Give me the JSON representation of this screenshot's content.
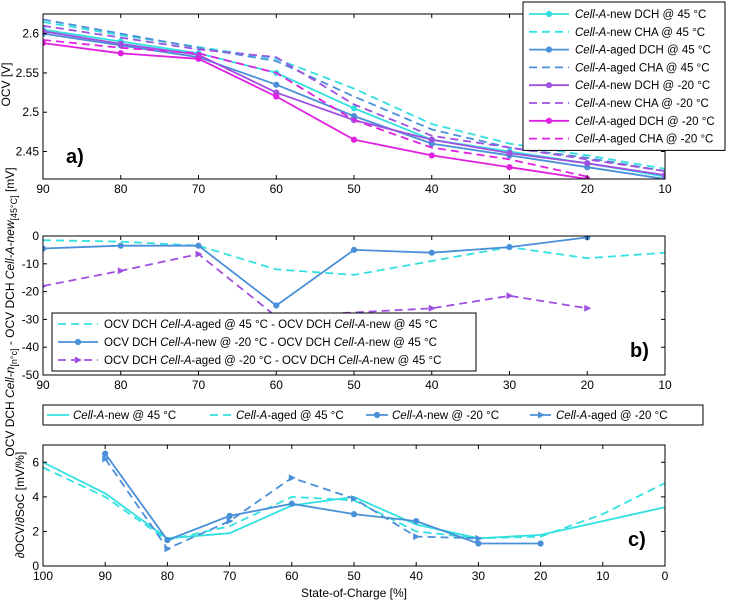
{
  "colors": {
    "cyan": "#33E0E0",
    "blue": "#4A90D9",
    "purple": "#A050E0",
    "magenta": "#E020E0",
    "axis": "#000000"
  },
  "chart_data": [
    {
      "id": "a",
      "type": "line",
      "panel_label": "a)",
      "ylabel": "OCV [V]",
      "xlim": [
        90,
        10
      ],
      "ylim": [
        2.415,
        2.625
      ],
      "x_ticks": [
        90,
        80,
        70,
        60,
        50,
        40,
        30,
        20,
        10
      ],
      "y_ticks": [
        2.45,
        2.5,
        2.55,
        2.6
      ],
      "legend_position": "top-right",
      "series": [
        {
          "name": "Cell-A-new DCH @ 45 °C",
          "name_italic": "Cell-A",
          "name_rest": "-new DCH @ 45 °C",
          "color": "#33E0E0",
          "dash": false,
          "marker": "circle",
          "x": [
            90,
            80,
            70,
            60,
            50,
            40,
            30,
            20,
            10
          ],
          "y": [
            2.605,
            2.59,
            2.575,
            2.55,
            2.505,
            2.465,
            2.45,
            2.435,
            2.418
          ]
        },
        {
          "name": "Cell-A-new CHA @ 45 °C",
          "name_italic": "Cell-A",
          "name_rest": "-new CHA @ 45 °C",
          "color": "#33E0E0",
          "dash": true,
          "marker": "none",
          "x": [
            90,
            80,
            70,
            60,
            50,
            40,
            30,
            20,
            10
          ],
          "y": [
            2.615,
            2.598,
            2.583,
            2.568,
            2.53,
            2.485,
            2.46,
            2.445,
            2.428
          ]
        },
        {
          "name": "Cell-A-aged DCH @ 45 °C",
          "name_italic": "Cell-A",
          "name_rest": "-aged DCH @ 45 °C",
          "color": "#4A90D9",
          "dash": false,
          "marker": "circle",
          "x": [
            90,
            80,
            70,
            60,
            50,
            40,
            30,
            20,
            10
          ],
          "y": [
            2.6,
            2.585,
            2.57,
            2.535,
            2.495,
            2.46,
            2.445,
            2.43,
            2.415
          ]
        },
        {
          "name": "Cell-A-aged CHA @ 45 °C",
          "name_italic": "Cell-A",
          "name_rest": "-aged CHA @ 45 °C",
          "color": "#4A90D9",
          "dash": true,
          "marker": "none",
          "x": [
            90,
            80,
            70,
            60,
            50,
            40,
            30,
            20,
            10
          ],
          "y": [
            2.618,
            2.6,
            2.582,
            2.565,
            2.52,
            2.478,
            2.455,
            2.442,
            2.425
          ]
        },
        {
          "name": "Cell-A-new DCH @ -20 °C",
          "name_italic": "Cell-A",
          "name_rest": "-new DCH @ -20 °C",
          "color": "#A050E0",
          "dash": false,
          "marker": "circle",
          "x": [
            90,
            80,
            70,
            60,
            50,
            40,
            30,
            20,
            10
          ],
          "y": [
            2.603,
            2.587,
            2.573,
            2.525,
            2.49,
            2.465,
            2.448,
            2.435,
            2.42
          ]
        },
        {
          "name": "Cell-A-new CHA @ -20 °C",
          "name_italic": "Cell-A",
          "name_rest": "-new CHA @ -20 °C",
          "color": "#A050E0",
          "dash": true,
          "marker": "none",
          "x": [
            90,
            80,
            70,
            60,
            50,
            40,
            30,
            20,
            10
          ],
          "y": [
            2.61,
            2.595,
            2.58,
            2.57,
            2.51,
            2.47,
            2.455,
            2.44,
            2.425
          ]
        },
        {
          "name": "Cell-A-aged DCH @ -20 °C",
          "name_italic": "Cell-A",
          "name_rest": "-aged DCH @ -20 °C",
          "color": "#E020E0",
          "dash": false,
          "marker": "circle",
          "x": [
            90,
            80,
            70,
            60,
            50,
            40,
            30,
            20
          ],
          "y": [
            2.588,
            2.575,
            2.568,
            2.52,
            2.465,
            2.445,
            2.43,
            2.415
          ]
        },
        {
          "name": "Cell-A-aged CHA @ -20 °C",
          "name_italic": "Cell-A",
          "name_rest": "-aged CHA @ -20 °C",
          "color": "#E020E0",
          "dash": true,
          "marker": "none",
          "x": [
            90,
            80,
            70,
            60,
            50,
            40,
            30,
            20
          ],
          "y": [
            2.592,
            2.582,
            2.575,
            2.55,
            2.49,
            2.455,
            2.44,
            2.418
          ]
        }
      ]
    },
    {
      "id": "b",
      "type": "line",
      "panel_label": "b)",
      "ylabel": "OCV DCH Cell-ni[n°c] - OCV DCH Cell-A-new[45°C] [mV]",
      "ylabel_parts": [
        "OCV DCH ",
        "Cell-n",
        "[n°c]",
        " - OCV DCH ",
        "Cell-A-new",
        "[45°C]",
        " [mV]"
      ],
      "xlim": [
        90,
        10
      ],
      "ylim": [
        -50,
        0
      ],
      "x_ticks": [
        90,
        80,
        70,
        60,
        50,
        40,
        30,
        20,
        10
      ],
      "y_ticks": [
        0,
        -10,
        -20,
        -30,
        -40,
        -50
      ],
      "legend_position": "bottom-left",
      "series": [
        {
          "name": "OCV DCH Cell-A-aged @ 45 °C - OCV DCH Cell-A-new @ 45 °C",
          "name_parts": [
            "OCV DCH ",
            "Cell-A",
            "-aged @ 45 °C - OCV DCH ",
            "Cell-A",
            "-new @ 45 °C"
          ],
          "color": "#33E0E0",
          "dash": true,
          "marker": "none",
          "x": [
            90,
            80,
            70,
            60,
            50,
            40,
            30,
            20,
            10
          ],
          "y": [
            -1.5,
            -2,
            -3.5,
            -12,
            -14,
            -9,
            -4,
            -8,
            -6
          ]
        },
        {
          "name": "OCV DCH Cell-A-new @ -20 °C - OCV DCH Cell-A-new @ 45 °C",
          "name_parts": [
            "OCV DCH ",
            "Cell-A",
            "-new @ -20 °C - OCV DCH ",
            "Cell-A",
            "-new @ 45 °C"
          ],
          "color": "#4A90D9",
          "dash": false,
          "marker": "circle",
          "x": [
            90,
            80,
            70,
            60,
            50,
            40,
            30,
            20
          ],
          "y": [
            -4.5,
            -3.5,
            -3.5,
            -25,
            -5,
            -6,
            -4,
            -0.5
          ]
        },
        {
          "name": "OCV DCH Cell-A-aged @ -20 °C - OCV DCH Cell-A-new @ 45 °C",
          "name_parts": [
            "OCV DCH ",
            "Cell-A",
            "-aged @ -20 °C - OCV DCH ",
            "Cell-A",
            "-new @ 45 °C"
          ],
          "color": "#A050E0",
          "dash": true,
          "marker": "triangle",
          "x": [
            90,
            80,
            70,
            60,
            40,
            30,
            20
          ],
          "y": [
            -18,
            -12.5,
            -6.5,
            -29,
            -26,
            -21.5,
            -26
          ]
        }
      ]
    },
    {
      "id": "c",
      "type": "line",
      "panel_label": "c)",
      "ylabel": "∂OCV/∂SoC [mV/%]",
      "xlabel": "State-of-Charge [%]",
      "xlim": [
        100,
        0
      ],
      "ylim": [
        0,
        7
      ],
      "x_ticks": [
        100,
        90,
        80,
        70,
        60,
        50,
        40,
        30,
        20,
        10,
        0
      ],
      "y_ticks": [
        0,
        2,
        4,
        6
      ],
      "legend_position": "top",
      "series": [
        {
          "name": "Cell-A-new @ 45 °C",
          "name_italic": "Cell-A",
          "name_rest": "-new @ 45 °C",
          "color": "#33E0E0",
          "dash": false,
          "marker": "none",
          "x": [
            100,
            90,
            80,
            70,
            60,
            50,
            40,
            30,
            20,
            10,
            0
          ],
          "y": [
            6.0,
            4.2,
            1.6,
            1.9,
            3.5,
            4.0,
            2.4,
            1.6,
            1.8,
            2.6,
            3.4
          ]
        },
        {
          "name": "Cell-A-aged  @ 45 °C",
          "name_italic": "Cell-A",
          "name_rest": "-aged  @ 45 °C",
          "color": "#33E0E0",
          "dash": true,
          "marker": "none",
          "x": [
            100,
            90,
            80,
            70,
            60,
            50,
            40,
            30,
            20,
            10,
            0
          ],
          "y": [
            5.7,
            4.0,
            1.5,
            2.3,
            4.0,
            3.8,
            2.0,
            1.6,
            1.7,
            3.0,
            4.8
          ]
        },
        {
          "name": "Cell-A-new @ -20 °C",
          "name_italic": "Cell-A",
          "name_rest": "-new @ -20 °C",
          "color": "#4A90D9",
          "dash": false,
          "marker": "circle",
          "x": [
            90,
            80,
            70,
            60,
            50,
            40,
            30,
            20
          ],
          "y": [
            6.5,
            1.5,
            2.9,
            3.6,
            3.0,
            2.6,
            1.3,
            1.3
          ]
        },
        {
          "name": "Cell-A-aged @ -20 °C",
          "name_italic": "Cell-A",
          "name_rest": "-aged @ -20 °C",
          "color": "#4A90D9",
          "dash": true,
          "marker": "triangle",
          "x": [
            90,
            80,
            70,
            60,
            50,
            40,
            30
          ],
          "y": [
            6.2,
            1.0,
            2.6,
            5.1,
            3.9,
            1.7,
            1.6
          ]
        }
      ]
    }
  ]
}
